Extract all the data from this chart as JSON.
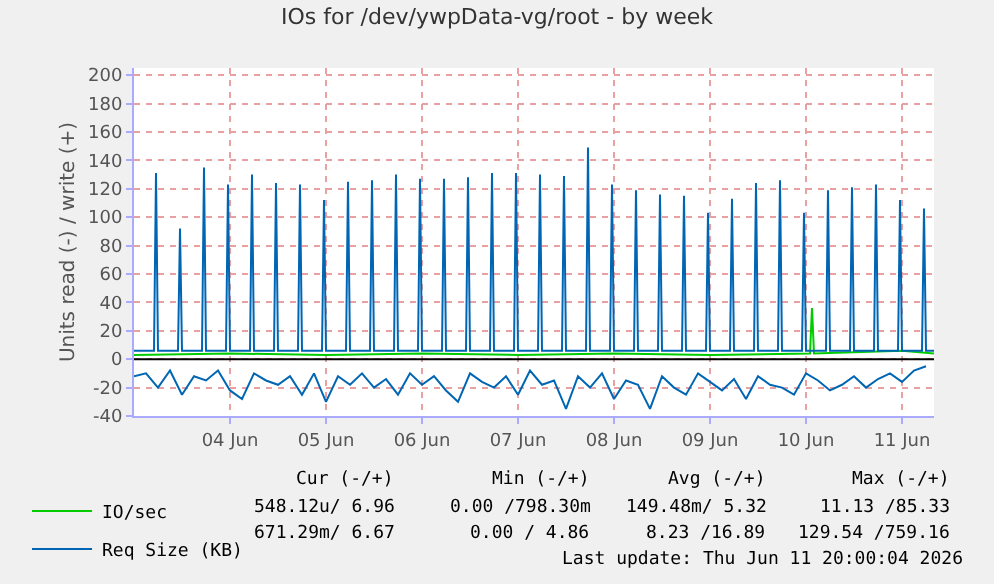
{
  "chart_data": {
    "type": "line",
    "title": "IOs for /dev/ywpData-vg/root - by week",
    "ylabel": "Units read (-) / write (+)",
    "xlim": [
      "2026-06-03T12:00",
      "2026-06-11T20:00"
    ],
    "xticks": [
      {
        "value": "2026-06-04T12:00",
        "label": "04 Jun"
      },
      {
        "value": "2026-06-05T12:00",
        "label": "05 Jun"
      },
      {
        "value": "2026-06-06T12:00",
        "label": "06 Jun"
      },
      {
        "value": "2026-06-07T12:00",
        "label": "07 Jun"
      },
      {
        "value": "2026-06-08T12:00",
        "label": "08 Jun"
      },
      {
        "value": "2026-06-09T12:00",
        "label": "09 Jun"
      },
      {
        "value": "2026-06-10T12:00",
        "label": "10 Jun"
      },
      {
        "value": "2026-06-11T12:00",
        "label": "11 Jun"
      }
    ],
    "ylim": [
      -40,
      205
    ],
    "yticks": [
      -40,
      -20,
      0,
      20,
      40,
      60,
      80,
      100,
      120,
      140,
      160,
      180,
      200
    ],
    "grid": true,
    "legend": "bottom",
    "line_style": "solid",
    "ref_lines": [
      {
        "axis": "y",
        "value": 0,
        "color": "#000000"
      }
    ],
    "series": [
      {
        "name": "IO/sec",
        "color": "#00cc00",
        "x": [
          "2026-06-03T12:00",
          "2026-06-04T12:00",
          "2026-06-05T12:00",
          "2026-06-06T12:00",
          "2026-06-07T12:00",
          "2026-06-08T12:00",
          "2026-06-09T12:00",
          "2026-06-10T13:00",
          "2026-06-10T13:30",
          "2026-06-10T14:00",
          "2026-06-11T12:00",
          "2026-06-11T20:00"
        ],
        "values": [
          3,
          4,
          3,
          4,
          3,
          4,
          3,
          4,
          36,
          4,
          6,
          4
        ]
      },
      {
        "name": "Req Size (KB)",
        "color": "#0066b3",
        "x": [
          "2026-06-03T12:00",
          "2026-06-03T17:00",
          "2026-06-03T17:30",
          "2026-06-03T18:00",
          "2026-06-03T23:00",
          "2026-06-03T23:30",
          "2026-06-04T00:00",
          "2026-06-04T05:00",
          "2026-06-04T05:30",
          "2026-06-04T06:00",
          "2026-06-04T11:00",
          "2026-06-04T11:30",
          "2026-06-04T12:00",
          "2026-06-04T17:00",
          "2026-06-04T17:30",
          "2026-06-04T18:00",
          "2026-06-04T23:00",
          "2026-06-04T23:30",
          "2026-06-05T00:00",
          "2026-06-05T05:00",
          "2026-06-05T05:30",
          "2026-06-05T06:00",
          "2026-06-05T11:00",
          "2026-06-05T11:30",
          "2026-06-05T12:00",
          "2026-06-05T17:00",
          "2026-06-05T17:30",
          "2026-06-05T18:00",
          "2026-06-05T23:00",
          "2026-06-05T23:30",
          "2026-06-06T00:00",
          "2026-06-06T05:00",
          "2026-06-06T05:30",
          "2026-06-06T06:00",
          "2026-06-06T11:00",
          "2026-06-06T11:30",
          "2026-06-06T12:00",
          "2026-06-06T17:00",
          "2026-06-06T17:30",
          "2026-06-06T18:00",
          "2026-06-06T23:00",
          "2026-06-06T23:30",
          "2026-06-07T00:00",
          "2026-06-07T05:00",
          "2026-06-07T05:30",
          "2026-06-07T06:00",
          "2026-06-07T11:00",
          "2026-06-07T11:30",
          "2026-06-07T12:00",
          "2026-06-07T17:00",
          "2026-06-07T17:30",
          "2026-06-07T18:00",
          "2026-06-07T23:00",
          "2026-06-07T23:30",
          "2026-06-08T00:00",
          "2026-06-08T05:00",
          "2026-06-08T05:30",
          "2026-06-08T06:00",
          "2026-06-08T11:00",
          "2026-06-08T11:30",
          "2026-06-08T12:00",
          "2026-06-08T17:00",
          "2026-06-08T17:30",
          "2026-06-08T18:00",
          "2026-06-08T23:00",
          "2026-06-08T23:30",
          "2026-06-09T00:00",
          "2026-06-09T05:00",
          "2026-06-09T05:30",
          "2026-06-09T06:00",
          "2026-06-09T11:00",
          "2026-06-09T11:30",
          "2026-06-09T12:00",
          "2026-06-09T17:00",
          "2026-06-09T17:30",
          "2026-06-09T18:00",
          "2026-06-09T23:00",
          "2026-06-09T23:30",
          "2026-06-10T00:00",
          "2026-06-10T05:00",
          "2026-06-10T05:30",
          "2026-06-10T06:00",
          "2026-06-10T11:00",
          "2026-06-10T11:30",
          "2026-06-10T12:00",
          "2026-06-10T17:00",
          "2026-06-10T17:30",
          "2026-06-10T18:00",
          "2026-06-10T23:00",
          "2026-06-10T23:30",
          "2026-06-11T00:00",
          "2026-06-11T05:00",
          "2026-06-11T05:30",
          "2026-06-11T06:00",
          "2026-06-11T11:00",
          "2026-06-11T11:30",
          "2026-06-11T12:00",
          "2026-06-11T17:00",
          "2026-06-11T17:30",
          "2026-06-11T18:00",
          "2026-06-11T20:00"
        ],
        "values": [
          6,
          6,
          131,
          6,
          6,
          92,
          6,
          6,
          135,
          6,
          6,
          123,
          6,
          6,
          130,
          6,
          6,
          124,
          6,
          6,
          123,
          6,
          6,
          112,
          6,
          6,
          125,
          6,
          6,
          126,
          6,
          6,
          130,
          6,
          6,
          127,
          6,
          6,
          127,
          6,
          6,
          128,
          6,
          6,
          131,
          6,
          6,
          131,
          6,
          6,
          130,
          6,
          6,
          129,
          6,
          6,
          149,
          6,
          6,
          123,
          6,
          6,
          119,
          6,
          6,
          116,
          6,
          6,
          115,
          6,
          6,
          103,
          6,
          6,
          113,
          6,
          6,
          124,
          6,
          6,
          126,
          6,
          6,
          103,
          6,
          6,
          119,
          6,
          6,
          121,
          6,
          6,
          123,
          6,
          6,
          112,
          6,
          6,
          106,
          6,
          6
        ]
      },
      {
        "color": "#0066b3",
        "x": [
          "2026-06-03T12:00",
          "2026-06-03T15:00",
          "2026-06-03T18:00",
          "2026-06-03T21:00",
          "2026-06-04T00:00",
          "2026-06-04T03:00",
          "2026-06-04T06:00",
          "2026-06-04T09:00",
          "2026-06-04T12:00",
          "2026-06-04T15:00",
          "2026-06-04T18:00",
          "2026-06-04T21:00",
          "2026-06-05T00:00",
          "2026-06-05T03:00",
          "2026-06-05T06:00",
          "2026-06-05T09:00",
          "2026-06-05T12:00",
          "2026-06-05T15:00",
          "2026-06-05T18:00",
          "2026-06-05T21:00",
          "2026-06-06T00:00",
          "2026-06-06T03:00",
          "2026-06-06T06:00",
          "2026-06-06T09:00",
          "2026-06-06T12:00",
          "2026-06-06T15:00",
          "2026-06-06T18:00",
          "2026-06-06T21:00",
          "2026-06-07T00:00",
          "2026-06-07T03:00",
          "2026-06-07T06:00",
          "2026-06-07T09:00",
          "2026-06-07T12:00",
          "2026-06-07T15:00",
          "2026-06-07T18:00",
          "2026-06-07T21:00",
          "2026-06-08T00:00",
          "2026-06-08T03:00",
          "2026-06-08T06:00",
          "2026-06-08T09:00",
          "2026-06-08T12:00",
          "2026-06-08T15:00",
          "2026-06-08T18:00",
          "2026-06-08T21:00",
          "2026-06-09T00:00",
          "2026-06-09T03:00",
          "2026-06-09T06:00",
          "2026-06-09T09:00",
          "2026-06-09T12:00",
          "2026-06-09T15:00",
          "2026-06-09T18:00",
          "2026-06-09T21:00",
          "2026-06-10T00:00",
          "2026-06-10T03:00",
          "2026-06-10T06:00",
          "2026-06-10T09:00",
          "2026-06-10T12:00",
          "2026-06-10T15:00",
          "2026-06-10T18:00",
          "2026-06-10T21:00",
          "2026-06-11T00:00",
          "2026-06-11T03:00",
          "2026-06-11T06:00",
          "2026-06-11T09:00",
          "2026-06-11T12:00",
          "2026-06-11T15:00",
          "2026-06-11T18:00"
        ],
        "values": [
          -12,
          -10,
          -20,
          -8,
          -25,
          -12,
          -15,
          -8,
          -22,
          -28,
          -10,
          -15,
          -18,
          -12,
          -25,
          -10,
          -30,
          -12,
          -18,
          -10,
          -20,
          -14,
          -25,
          -10,
          -18,
          -12,
          -22,
          -30,
          -10,
          -16,
          -20,
          -12,
          -25,
          -8,
          -18,
          -15,
          -35,
          -12,
          -20,
          -10,
          -28,
          -15,
          -18,
          -35,
          -12,
          -20,
          -25,
          -10,
          -16,
          -22,
          -14,
          -28,
          -12,
          -18,
          -20,
          -25,
          -10,
          -15,
          -22,
          -18,
          -12,
          -20,
          -14,
          -10,
          -16,
          -8,
          -5
        ]
      }
    ],
    "annotations": [
      "Cur (-/+)",
      "Min (-/+)",
      "Avg (-/+)",
      "Max (-/+)",
      "548.12u/ 6.96",
      "0.00 /798.30m",
      "149.48m/ 5.32",
      "11.13 /85.33",
      "671.29m/ 6.67",
      "0.00 / 4.86",
      "8.23 /16.89",
      "129.54 /759.16",
      "Last update: Thu Jun 11 20:00:04 2026"
    ]
  }
}
